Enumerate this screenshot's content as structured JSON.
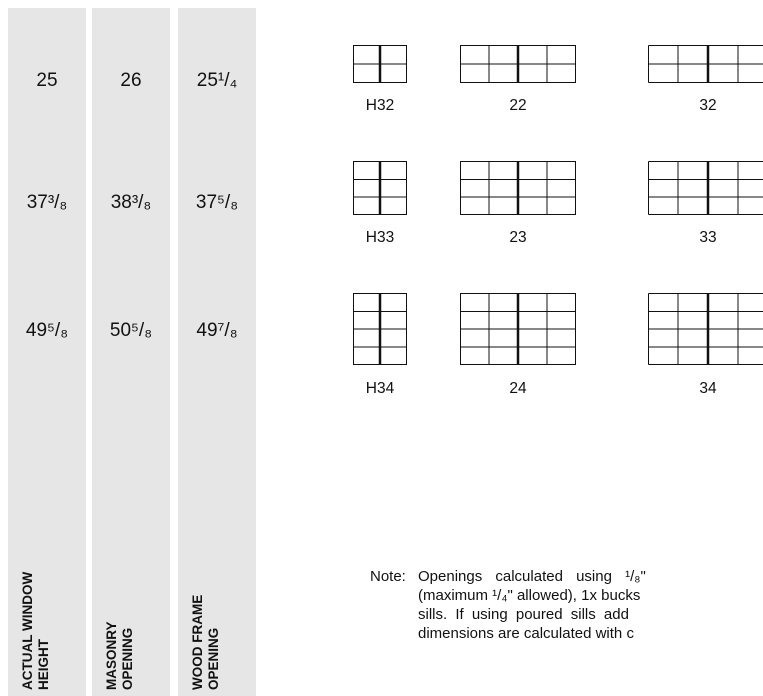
{
  "columns": [
    {
      "values": [
        "25",
        "37³/₈",
        "49⁵/₈"
      ],
      "label_line1": "ACTUAL WINDOW",
      "label_line2": "HEIGHT"
    },
    {
      "values": [
        "26",
        "38³/₈",
        "50⁵/₈"
      ],
      "label_line1": "MASONRY",
      "label_line2": "OPENING"
    },
    {
      "values": [
        "25¹/₄",
        "37⁵/₈",
        "49⁷/₈"
      ],
      "label_line1": "WOOD FRAME",
      "label_line2": "OPENING"
    }
  ],
  "windows": {
    "row1": [
      "H32",
      "22",
      "32"
    ],
    "row2": [
      "H33",
      "23",
      "33"
    ],
    "row3": [
      "H34",
      "24",
      "34"
    ]
  },
  "note": {
    "lead": "Note:",
    "lines": [
      "Openings calculated using ¹/₈\"",
      "(maximum ¹/₄\" allowed), 1x bucks",
      "sills. If using poured sills add",
      "dimensions are calculated with c"
    ]
  },
  "colors": {
    "column_bg": "#e6e6e6",
    "line": "#111111"
  }
}
